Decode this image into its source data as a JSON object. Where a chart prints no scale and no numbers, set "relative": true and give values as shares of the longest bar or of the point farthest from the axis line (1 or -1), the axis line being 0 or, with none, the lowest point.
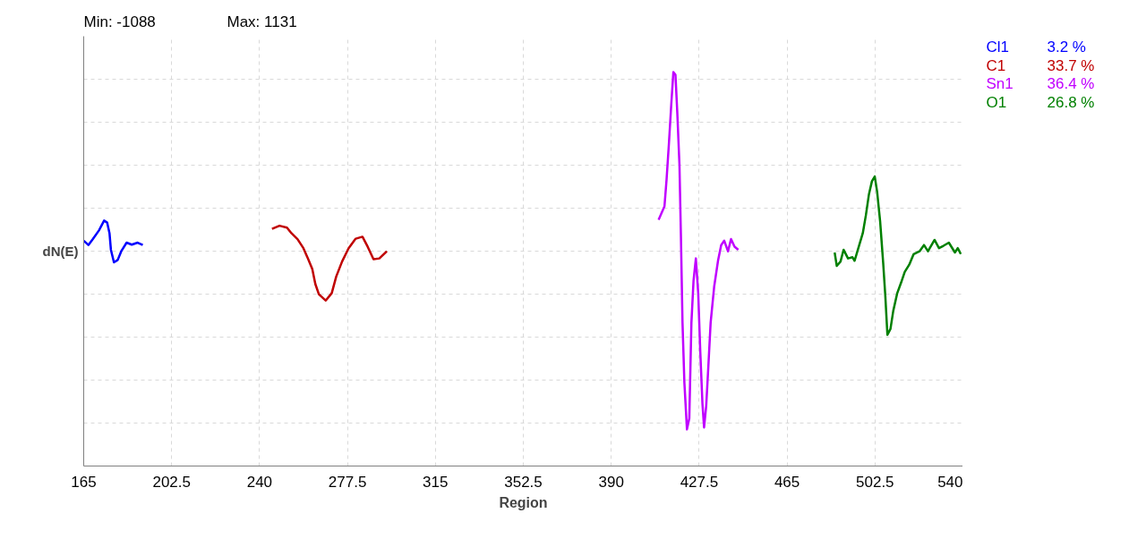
{
  "chart_data": {
    "type": "line",
    "relative": true,
    "xlabel": "Region",
    "ylabel": "dN(E)",
    "xlim": [
      165,
      540
    ],
    "xticks": [
      165,
      202.5,
      240,
      277.5,
      315,
      352.5,
      390,
      427.5,
      465,
      502.5,
      540
    ],
    "grid": true,
    "marker": "none",
    "line_style": "solid",
    "annotations": [
      "Min: -1088",
      "Max: 1131"
    ],
    "series": [
      {
        "name": "Cl1 3.2 %",
        "color": "#0000ff",
        "x": [
          165,
          167.0,
          168.9,
          171.5,
          173.7,
          175.0,
          176.0,
          176.6,
          177.9,
          179.5,
          181.0,
          183.3,
          185.5,
          188.0,
          190.2
        ],
        "values": [
          0.572,
          0.561,
          0.576,
          0.598,
          0.623,
          0.618,
          0.591,
          0.549,
          0.517,
          0.523,
          0.545,
          0.567,
          0.562,
          0.567,
          0.561
        ]
      },
      {
        "name": "C1 33.7 %",
        "color": "#c00000",
        "x": [
          245.3,
          248.5,
          251.7,
          253.6,
          256.2,
          258.7,
          260.6,
          262.5,
          263.8,
          265.3,
          268.2,
          270.8,
          272.7,
          275.2,
          278.0,
          281.0,
          283.9,
          286.1,
          288.6,
          291.1,
          294.3
        ],
        "values": [
          0.602,
          0.61,
          0.605,
          0.591,
          0.576,
          0.553,
          0.527,
          0.5,
          0.462,
          0.436,
          0.42,
          0.439,
          0.481,
          0.519,
          0.553,
          0.577,
          0.582,
          0.557,
          0.525,
          0.527,
          0.545
        ]
      },
      {
        "name": "Sn1 36.4 %",
        "color": "#c000ff",
        "x": [
          410.2,
          412.7,
          413.6,
          414.6,
          415.6,
          416.5,
          417.4,
          418.2,
          419.1,
          419.7,
          420.4,
          421.2,
          422.3,
          423.3,
          424.2,
          425.1,
          426.1,
          427.1,
          428.0,
          428.9,
          429.6,
          430.5,
          431.4,
          432.4,
          433.9,
          435.6,
          436.9,
          438.2,
          439.8,
          441.1,
          442.6,
          444.2
        ],
        "values": [
          0.625,
          0.659,
          0.727,
          0.818,
          0.917,
          1.0,
          0.993,
          0.894,
          0.765,
          0.591,
          0.364,
          0.212,
          0.093,
          0.121,
          0.364,
          0.47,
          0.527,
          0.439,
          0.288,
          0.159,
          0.098,
          0.152,
          0.25,
          0.364,
          0.455,
          0.523,
          0.561,
          0.572,
          0.545,
          0.576,
          0.557,
          0.549
        ]
      },
      {
        "name": "O1 26.8 %",
        "color": "#008000",
        "x": [
          485.3,
          486.2,
          487.8,
          489.1,
          491.0,
          492.9,
          493.8,
          495.4,
          497.3,
          498.6,
          499.9,
          501.2,
          502.4,
          503.4,
          504.7,
          506.0,
          506.9,
          507.8,
          509.1,
          510.3,
          512.0,
          513.9,
          515.2,
          517.1,
          519.0,
          521.5,
          523.4,
          525.1,
          527.9,
          529.8,
          531.7,
          534.0,
          536.6,
          537.8,
          539.1
        ],
        "values": [
          0.542,
          0.508,
          0.519,
          0.549,
          0.527,
          0.53,
          0.521,
          0.553,
          0.591,
          0.636,
          0.689,
          0.723,
          0.735,
          0.697,
          0.621,
          0.515,
          0.432,
          0.333,
          0.348,
          0.394,
          0.439,
          0.47,
          0.493,
          0.511,
          0.538,
          0.545,
          0.561,
          0.545,
          0.574,
          0.553,
          0.559,
          0.567,
          0.542,
          0.553,
          0.538
        ]
      }
    ]
  }
}
